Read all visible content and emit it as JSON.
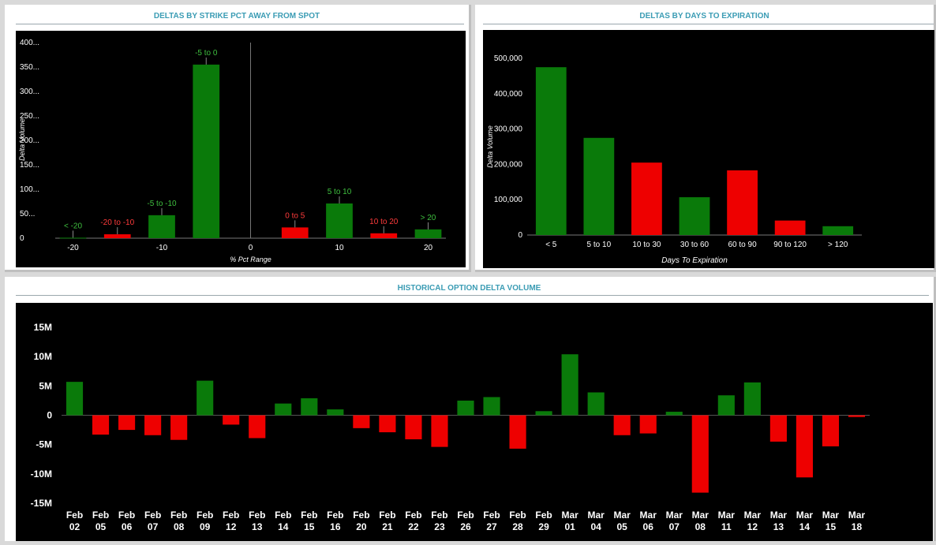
{
  "panels": {
    "strike": {
      "title": "DELTAS BY STRIKE PCT AWAY FROM SPOT"
    },
    "days": {
      "title": "DELTAS BY DAYS TO EXPIRATION"
    },
    "history": {
      "title": "HISTORICAL OPTION DELTA VOLUME"
    }
  },
  "chart_data": [
    {
      "id": "strike",
      "type": "bar",
      "title": "DELTAS BY STRIKE PCT AWAY FROM SPOT",
      "xlabel": "% Pct Range",
      "ylabel": "Delta Volume",
      "xlim": [
        -22,
        22
      ],
      "ylim": [
        0,
        400
      ],
      "xticks": [
        "-20",
        "-10",
        "0",
        "10",
        "20"
      ],
      "yticks": [
        "0",
        "50...",
        "100...",
        "150...",
        "200...",
        "250...",
        "300...",
        "350...",
        "400..."
      ],
      "bars": [
        {
          "label": "< -20",
          "center": -20,
          "width": 3,
          "value": 1,
          "color": "#0a7a0a"
        },
        {
          "label": "-20 to -10",
          "center": -15,
          "width": 3,
          "value": 8,
          "color": "#ee0000"
        },
        {
          "label": "-5 to -10",
          "center": -10,
          "width": 3,
          "value": 47,
          "color": "#0a7a0a"
        },
        {
          "label": "-5 to 0",
          "center": -5,
          "width": 3,
          "value": 355,
          "color": "#0a7a0a"
        },
        {
          "label": "0 to 5",
          "center": 5,
          "width": 3,
          "value": 22,
          "color": "#ee0000"
        },
        {
          "label": "5 to 10",
          "center": 10,
          "width": 3,
          "value": 71,
          "color": "#0a7a0a"
        },
        {
          "label": "10 to 20",
          "center": 15,
          "width": 3,
          "value": 10,
          "color": "#ee0000"
        },
        {
          "label": "> 20",
          "center": 20,
          "width": 3,
          "value": 18,
          "color": "#0a7a0a"
        }
      ],
      "grid": false
    },
    {
      "id": "days",
      "type": "bar",
      "title": "DELTAS BY DAYS TO EXPIRATION",
      "xlabel": "Days To Expiration",
      "ylabel": "Delta Volume",
      "ylim": [
        0,
        500000
      ],
      "yticks": [
        "0",
        "100,000",
        "200,000",
        "300,000",
        "400,000",
        "500,000"
      ],
      "categories": [
        "< 5",
        "5 to 10",
        "10 to 30",
        "30 to 60",
        "60 to 90",
        "90 to 120",
        "> 120"
      ],
      "values": [
        475000,
        275000,
        205000,
        107000,
        183000,
        41000,
        25000
      ],
      "colors": [
        "#0a7a0a",
        "#0a7a0a",
        "#ee0000",
        "#0a7a0a",
        "#ee0000",
        "#ee0000",
        "#0a7a0a"
      ],
      "grid": false
    },
    {
      "id": "history",
      "type": "bar",
      "title": "HISTORICAL OPTION DELTA VOLUME",
      "xlabel": "",
      "ylabel": "",
      "ylim": [
        -15,
        15
      ],
      "unit": "M",
      "yticks": [
        "-15M",
        "-10M",
        "-5M",
        "0",
        "5M",
        "10M",
        "15M"
      ],
      "categories": [
        [
          "Feb",
          "02"
        ],
        [
          "Feb",
          "05"
        ],
        [
          "Feb",
          "06"
        ],
        [
          "Feb",
          "07"
        ],
        [
          "Feb",
          "08"
        ],
        [
          "Feb",
          "09"
        ],
        [
          "Feb",
          "12"
        ],
        [
          "Feb",
          "13"
        ],
        [
          "Feb",
          "14"
        ],
        [
          "Feb",
          "15"
        ],
        [
          "Feb",
          "16"
        ],
        [
          "Feb",
          "20"
        ],
        [
          "Feb",
          "21"
        ],
        [
          "Feb",
          "22"
        ],
        [
          "Feb",
          "23"
        ],
        [
          "Feb",
          "26"
        ],
        [
          "Feb",
          "27"
        ],
        [
          "Feb",
          "28"
        ],
        [
          "Feb",
          "29"
        ],
        [
          "Mar",
          "01"
        ],
        [
          "Mar",
          "04"
        ],
        [
          "Mar",
          "05"
        ],
        [
          "Mar",
          "06"
        ],
        [
          "Mar",
          "07"
        ],
        [
          "Mar",
          "08"
        ],
        [
          "Mar",
          "11"
        ],
        [
          "Mar",
          "12"
        ],
        [
          "Mar",
          "13"
        ],
        [
          "Mar",
          "14"
        ],
        [
          "Mar",
          "15"
        ],
        [
          "Mar",
          "18"
        ]
      ],
      "values": [
        5.7,
        -3.3,
        -2.5,
        -3.4,
        -4.2,
        5.9,
        -1.6,
        -3.9,
        2.0,
        2.9,
        1.0,
        -2.2,
        -2.9,
        -4.1,
        -5.4,
        2.5,
        3.1,
        -5.7,
        0.7,
        10.4,
        3.9,
        -3.4,
        -3.1,
        0.6,
        -13.2,
        3.4,
        5.6,
        -4.5,
        -10.6,
        -5.3,
        -0.3
      ],
      "positive_color": "#0a7a0a",
      "negative_color": "#ee0000",
      "grid": false
    }
  ]
}
